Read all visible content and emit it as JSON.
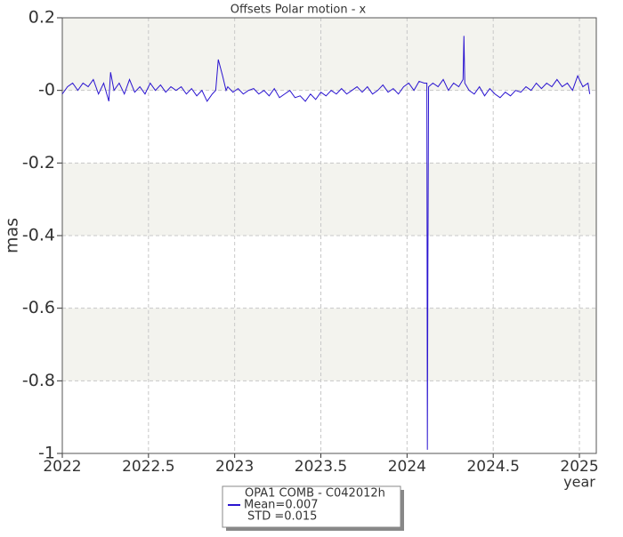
{
  "chart_data": {
    "type": "line",
    "title": "Offsets Polar motion - x",
    "y_label": "mas",
    "x_label": "year",
    "xlim": [
      2022,
      2025.098
    ],
    "ylim": [
      -1,
      0.2
    ],
    "xticks": [
      2022,
      2022.5,
      2023,
      2023.5,
      2024,
      2024.5,
      2025
    ],
    "yticks": [
      0.2,
      {
        "value": 0,
        "label": "-0"
      },
      -0.2,
      -0.4,
      -0.6,
      -0.8,
      -1
    ],
    "grid": true,
    "bands": true,
    "legend_position": "bottom",
    "legend_notes": [
      "Mean=0.007",
      "STD =0.015"
    ],
    "series": [
      {
        "name": "OPA1 COMB - C042012h",
        "color": "#2a14d0",
        "x": [
          2022.0,
          2022.03,
          2022.06,
          2022.09,
          2022.12,
          2022.15,
          2022.18,
          2022.21,
          2022.24,
          2022.27,
          2022.28,
          2022.3,
          2022.33,
          2022.36,
          2022.39,
          2022.42,
          2022.45,
          2022.48,
          2022.51,
          2022.54,
          2022.57,
          2022.6,
          2022.63,
          2022.66,
          2022.69,
          2022.72,
          2022.75,
          2022.78,
          2022.81,
          2022.84,
          2022.87,
          2022.89,
          2022.905,
          2022.93,
          2022.95,
          2022.96,
          2022.99,
          2023.02,
          2023.05,
          2023.08,
          2023.11,
          2023.14,
          2023.17,
          2023.2,
          2023.23,
          2023.26,
          2023.29,
          2023.32,
          2023.35,
          2023.38,
          2023.41,
          2023.44,
          2023.47,
          2023.5,
          2023.53,
          2023.56,
          2023.59,
          2023.62,
          2023.65,
          2023.68,
          2023.71,
          2023.74,
          2023.77,
          2023.8,
          2023.83,
          2023.86,
          2023.89,
          2023.92,
          2023.95,
          2023.98,
          2024.01,
          2024.04,
          2024.07,
          2024.1,
          2024.115,
          2024.118,
          2024.121,
          2024.125,
          2024.15,
          2024.18,
          2024.21,
          2024.24,
          2024.27,
          2024.3,
          2024.325,
          2024.33,
          2024.335,
          2024.36,
          2024.39,
          2024.42,
          2024.45,
          2024.48,
          2024.51,
          2024.54,
          2024.57,
          2024.6,
          2024.63,
          2024.66,
          2024.69,
          2024.72,
          2024.75,
          2024.78,
          2024.81,
          2024.84,
          2024.87,
          2024.9,
          2024.93,
          2024.96,
          2024.99,
          2025.02,
          2025.05,
          2025.06
        ],
        "values": [
          -0.01,
          0.01,
          0.02,
          0.0,
          0.02,
          0.01,
          0.03,
          -0.01,
          0.02,
          -0.03,
          0.05,
          0.0,
          0.02,
          -0.01,
          0.03,
          -0.005,
          0.01,
          -0.01,
          0.02,
          0.0,
          0.015,
          -0.005,
          0.01,
          0.0,
          0.01,
          -0.01,
          0.005,
          -0.015,
          0.0,
          -0.03,
          -0.01,
          0.0,
          0.085,
          0.04,
          0.0,
          0.01,
          -0.005,
          0.005,
          -0.01,
          0.0,
          0.005,
          -0.01,
          0.0,
          -0.015,
          0.005,
          -0.02,
          -0.01,
          0.0,
          -0.02,
          -0.015,
          -0.03,
          -0.01,
          -0.025,
          -0.005,
          -0.015,
          0.0,
          -0.01,
          0.005,
          -0.01,
          0.0,
          0.01,
          -0.005,
          0.01,
          -0.01,
          0.0,
          0.015,
          -0.005,
          0.005,
          -0.01,
          0.01,
          0.02,
          0.0,
          0.025,
          0.02,
          0.02,
          -0.99,
          -0.48,
          0.01,
          0.02,
          0.01,
          0.03,
          0.0,
          0.02,
          0.01,
          0.03,
          0.15,
          0.02,
          0.0,
          -0.01,
          0.01,
          -0.015,
          0.005,
          -0.01,
          -0.02,
          -0.005,
          -0.015,
          0.0,
          -0.005,
          0.01,
          0.0,
          0.02,
          0.005,
          0.02,
          0.01,
          0.03,
          0.01,
          0.02,
          0.0,
          0.04,
          0.01,
          0.02,
          -0.01
        ]
      }
    ]
  }
}
